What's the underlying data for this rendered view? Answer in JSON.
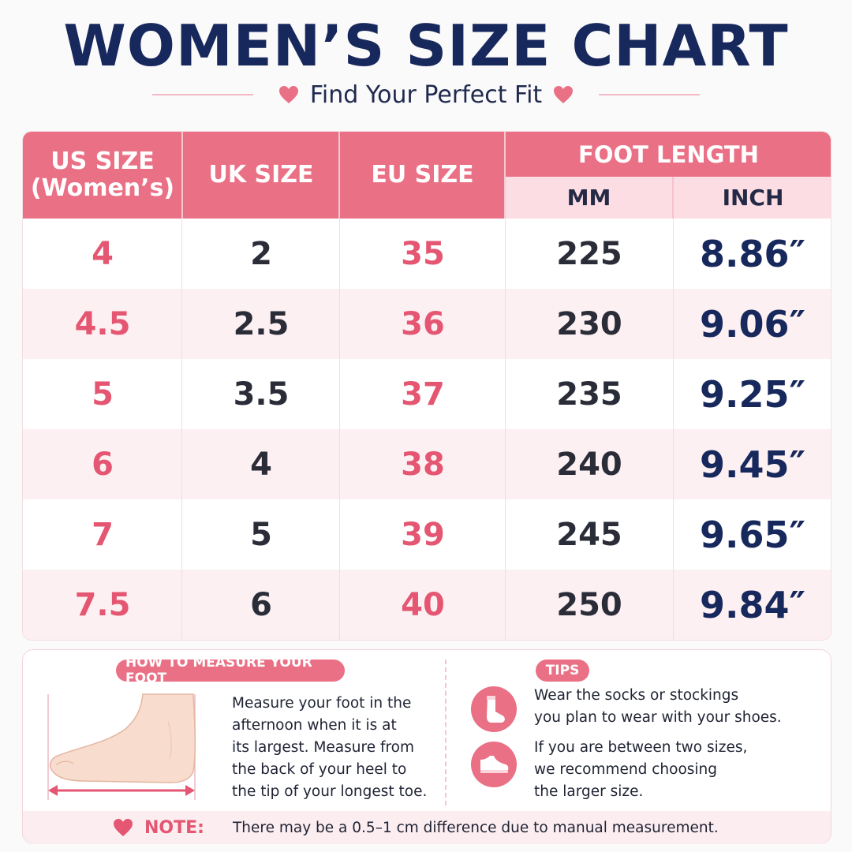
{
  "title": "WOMEN’S SIZE CHART",
  "subtitle": "Find Your Perfect Fit",
  "table": {
    "headers": {
      "us_line1": "US SIZE",
      "us_line2": "(Women’s)",
      "uk": "UK SIZE",
      "eu": "EU SIZE",
      "foot_length": "FOOT LENGTH",
      "mm": "MM",
      "inch": "INCH"
    },
    "rows": [
      {
        "us": "4",
        "uk": "2",
        "eu": "35",
        "mm": "225",
        "inch": "8.86″"
      },
      {
        "us": "4.5",
        "uk": "2.5",
        "eu": "36",
        "mm": "230",
        "inch": "9.06″"
      },
      {
        "us": "5",
        "uk": "3.5",
        "eu": "37",
        "mm": "235",
        "inch": "9.25″"
      },
      {
        "us": "6",
        "uk": "4",
        "eu": "38",
        "mm": "240",
        "inch": "9.45″"
      },
      {
        "us": "7",
        "uk": "5",
        "eu": "39",
        "mm": "245",
        "inch": "9.65″"
      },
      {
        "us": "7.5",
        "uk": "6",
        "eu": "40",
        "mm": "250",
        "inch": "9.84″"
      }
    ]
  },
  "measure": {
    "heading": "HOW TO MEASURE YOUR FOOT",
    "lines": [
      "Measure your foot in the",
      "afternoon when it is at",
      "its largest. Measure from",
      "the back of your heel to",
      "the tip of your longest toe."
    ]
  },
  "tips": {
    "heading": "TIPS",
    "tip1": [
      "Wear the socks or stockings",
      "you plan to wear with your shoes."
    ],
    "tip2": [
      "If you are between two sizes,",
      "we recommend choosing",
      "the larger size."
    ],
    "icons": [
      "sock-icon",
      "shoe-icon"
    ]
  },
  "note": {
    "label": "NOTE:",
    "text": "There may be a 0.5–1 cm difference due to manual measurement."
  },
  "colors": {
    "accent": "#ea7085",
    "navy": "#17285c",
    "light_pink": "#fdf0f2"
  }
}
